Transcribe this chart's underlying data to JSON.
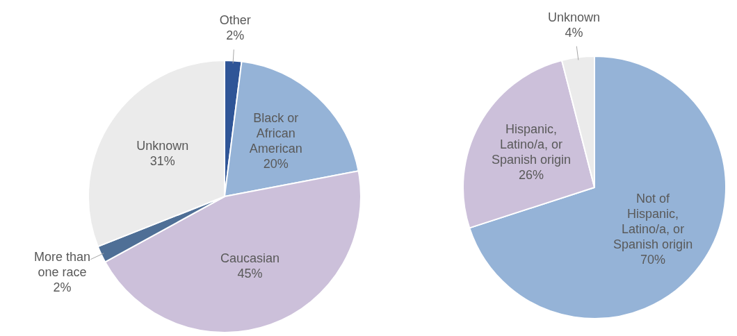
{
  "chart_data": [
    {
      "type": "pie",
      "categories": [
        "Other",
        "Black or African American",
        "Caucasian",
        "More than one race",
        "Unknown"
      ],
      "values": [
        2,
        20,
        45,
        2,
        31
      ],
      "value_labels": [
        "2%",
        "20%",
        "45%",
        "2%",
        "31%"
      ],
      "colors": [
        "#2f5597",
        "#95b3d7",
        "#ccc0da",
        "#4f6f96",
        "#ebebeb"
      ],
      "legend": false
    },
    {
      "type": "pie",
      "categories": [
        "Not of Hispanic, Latino/a, or Spanish origin",
        "Hispanic, Latino/a, or Spanish origin",
        "Unknown"
      ],
      "values": [
        70,
        26,
        4
      ],
      "value_labels": [
        "70%",
        "26%",
        "4%"
      ],
      "colors": [
        "#95b3d7",
        "#ccc0da",
        "#ebebeb"
      ],
      "legend": false
    }
  ]
}
